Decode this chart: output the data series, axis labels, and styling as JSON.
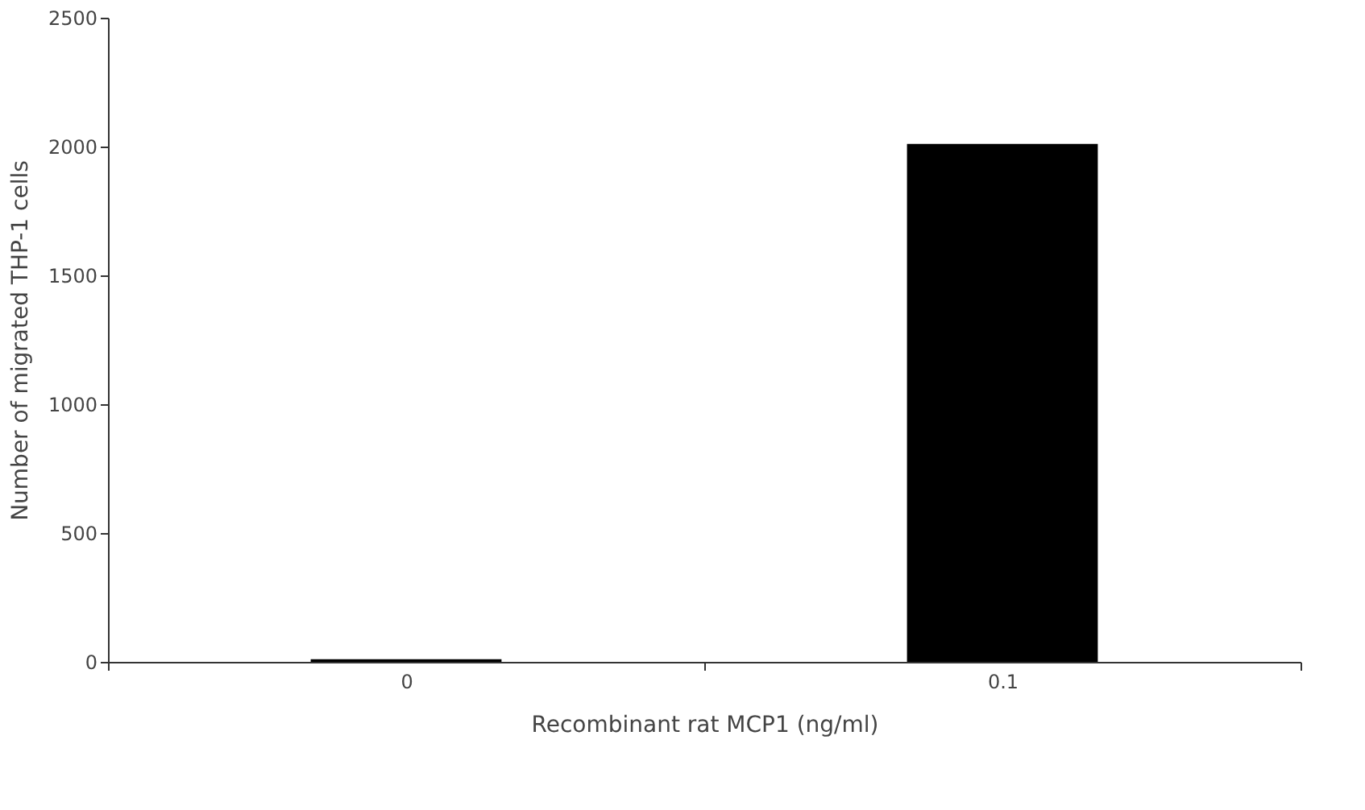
{
  "chart_data": {
    "type": "bar",
    "xlabel": "Recombinant rat MCP1 (ng/ml)",
    "ylabel": "Number of migrated THP-1 cells",
    "categories": [
      "0",
      "0.1"
    ],
    "values": [
      10,
      2010
    ],
    "color": "#000000",
    "ylim": [
      0,
      2500
    ],
    "yticks": [
      0,
      500,
      1000,
      1500,
      2000,
      2500
    ],
    "grid": false
  }
}
